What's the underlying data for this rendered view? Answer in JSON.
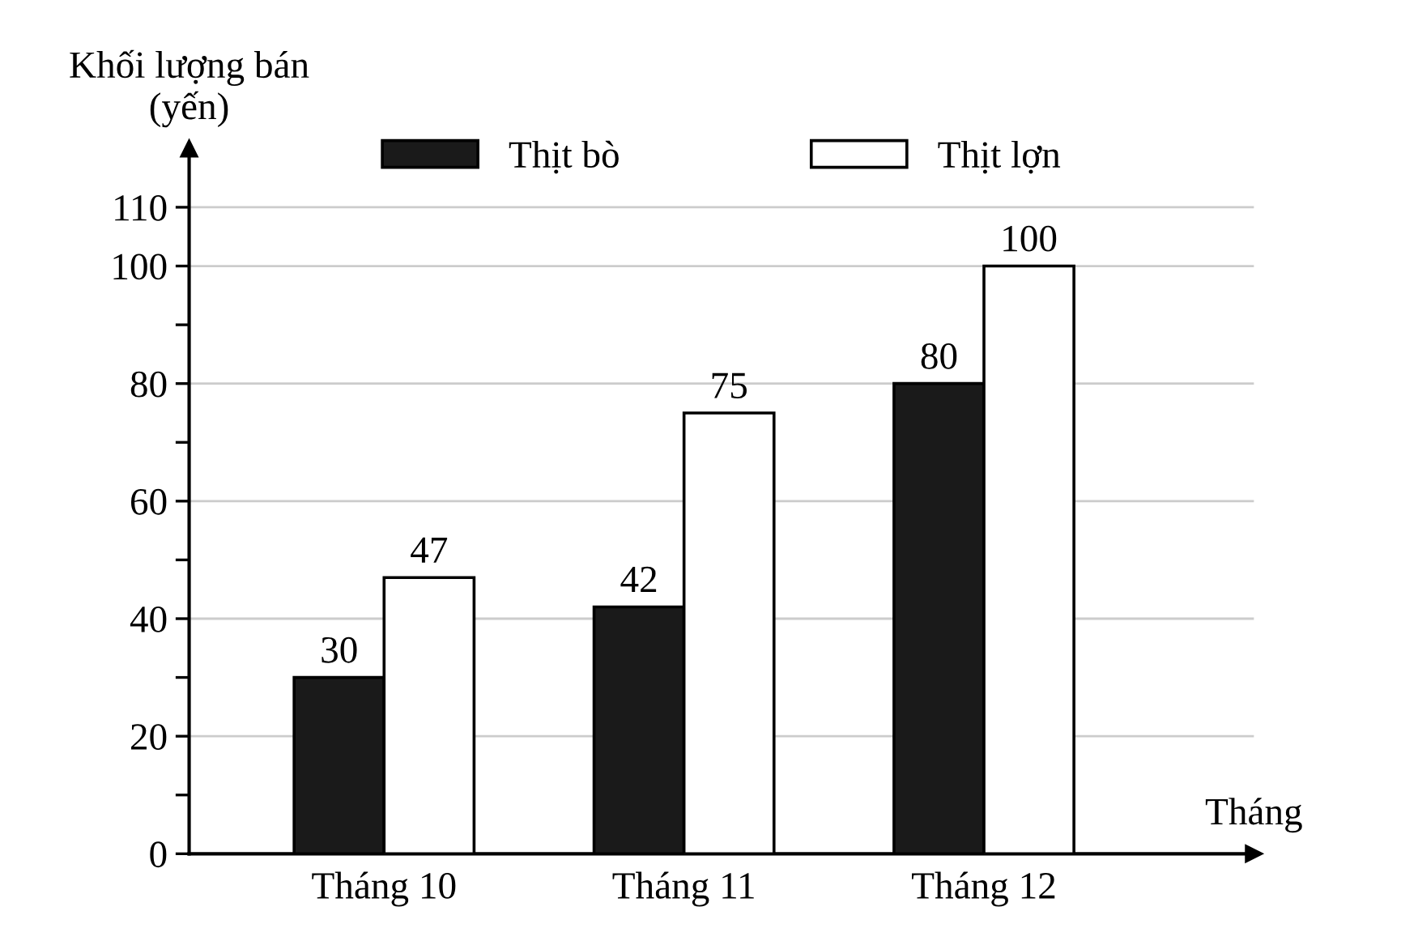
{
  "chart_data": {
    "type": "bar",
    "ylabel": "Khối lượng bán\n(yến)",
    "xlabel": "Tháng",
    "categories": [
      "Tháng 10",
      "Tháng 11",
      "Tháng 12"
    ],
    "series": [
      {
        "name": "Thịt bò",
        "color": "#1a1a1a",
        "values": [
          30,
          42,
          80
        ]
      },
      {
        "name": "Thịt lợn",
        "color": "#ffffff",
        "values": [
          47,
          75,
          100
        ]
      }
    ],
    "ylim": [
      0,
      120
    ],
    "yticks": [
      0,
      {
        "value": 10,
        "label": null
      },
      20,
      {
        "value": 30,
        "label": null
      },
      40,
      {
        "value": 50,
        "label": null
      },
      60,
      {
        "value": 70,
        "label": null
      },
      80,
      {
        "value": 90,
        "label": null
      },
      100,
      110
    ],
    "grid": "y",
    "legend": "top",
    "data_labels": true
  }
}
